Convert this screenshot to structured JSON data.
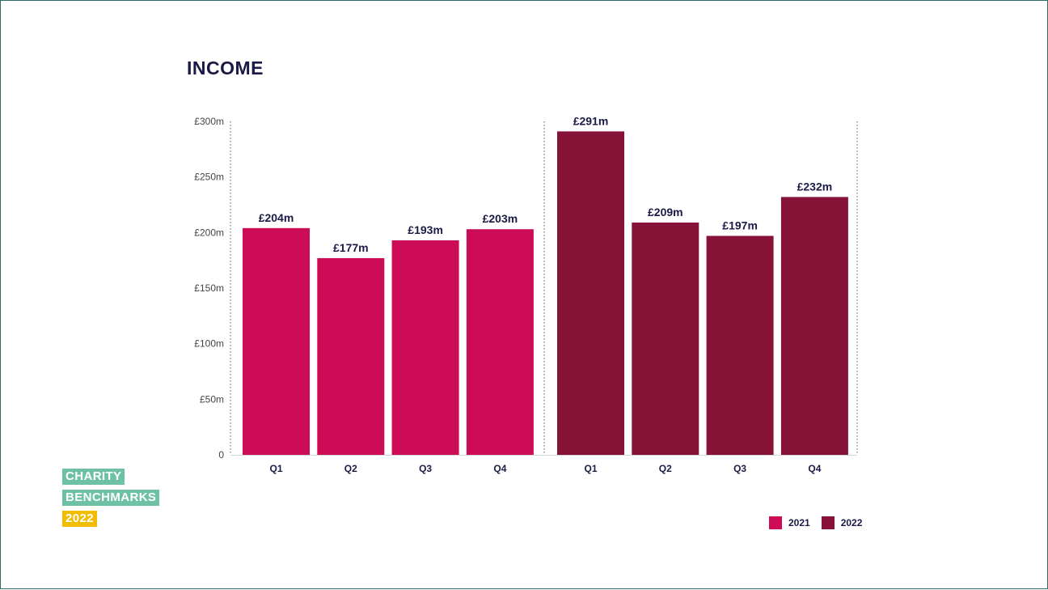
{
  "chart_data": {
    "type": "bar",
    "title": "INCOME",
    "categories": [
      "Q1",
      "Q2",
      "Q3",
      "Q4"
    ],
    "series": [
      {
        "name": "2021",
        "color": "#cc0c56",
        "values": [
          204,
          177,
          193,
          203
        ],
        "labels": [
          "£204m",
          "£177m",
          "£193m",
          "£203m"
        ]
      },
      {
        "name": "2022",
        "color": "#861337",
        "values": [
          291,
          209,
          197,
          232
        ],
        "labels": [
          "£291m",
          "£209m",
          "£197m",
          "£232m"
        ]
      }
    ],
    "ylim": [
      0,
      300
    ],
    "yticks": [
      0,
      50,
      100,
      150,
      200,
      250,
      300
    ],
    "ytick_labels": [
      "0",
      "£50m",
      "£100m",
      "£150m",
      "£200m",
      "£250m",
      "£300m"
    ],
    "grid": false,
    "legend_position": "bottom-right"
  },
  "logo": {
    "line1": "CHARITY",
    "line2": "BENCHMARKS",
    "line3": "2022"
  }
}
